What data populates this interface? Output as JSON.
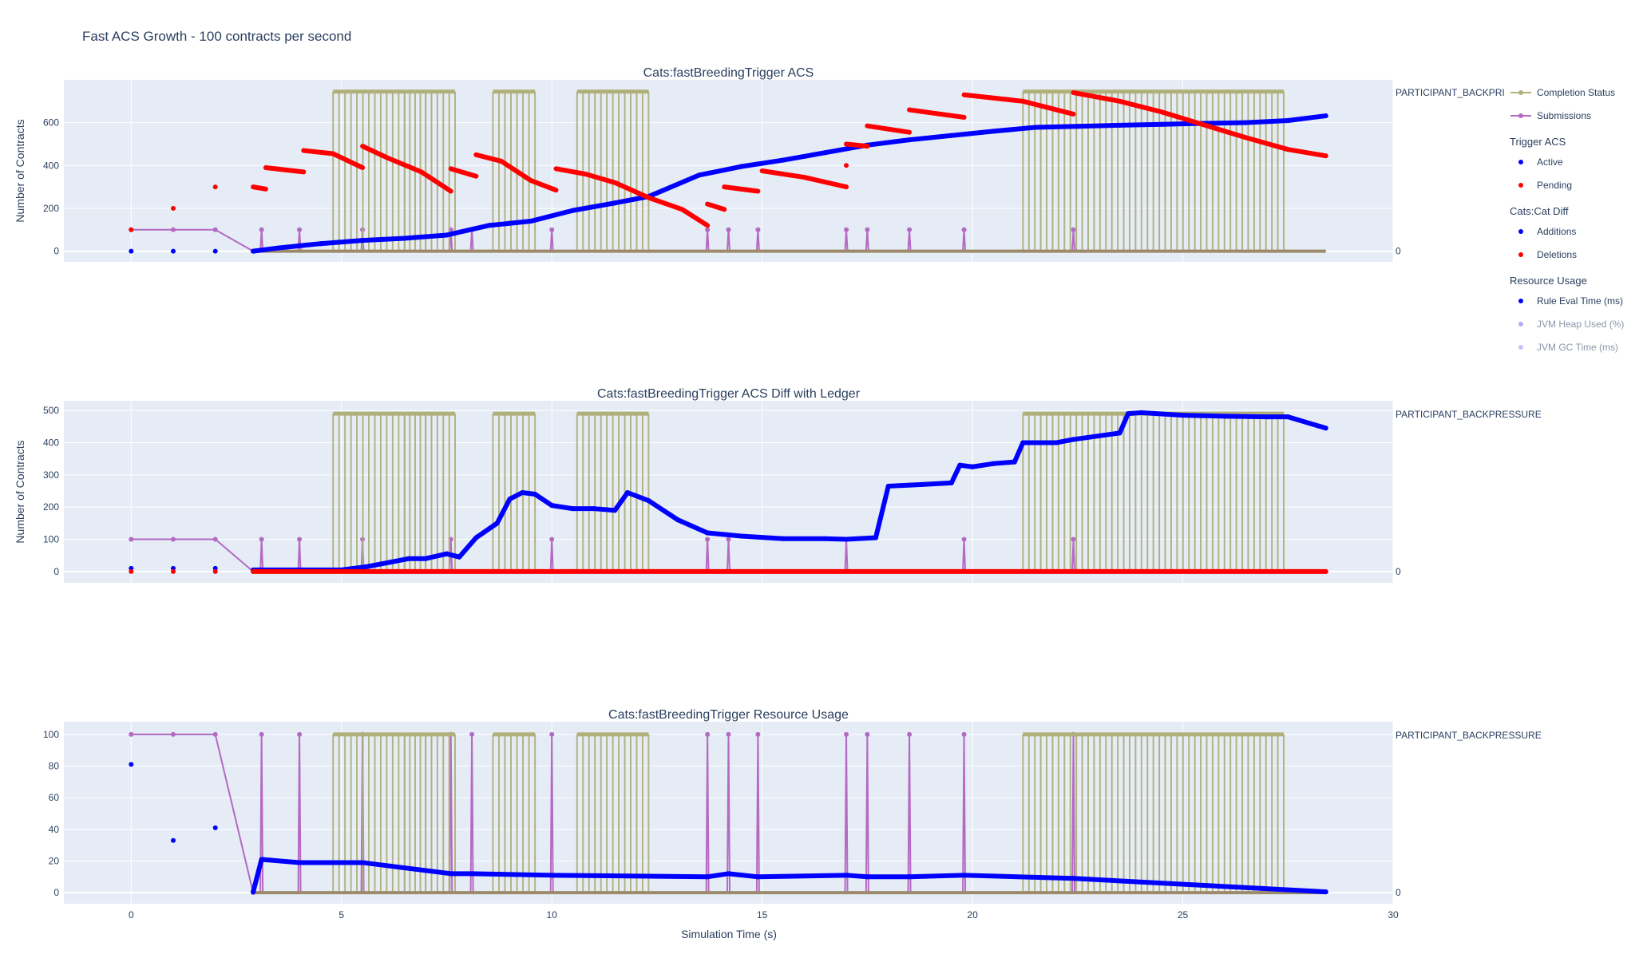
{
  "figure": {
    "title": "Fast ACS Growth - 100 contracts per second",
    "xlabel": "Simulation Time (s)",
    "xlim": [
      -1.6,
      30
    ],
    "xticks": [
      0,
      5,
      10,
      15,
      20,
      25,
      30
    ],
    "colors": {
      "plot_bg": "#e5ecf6",
      "grid": "#ffffff",
      "text": "#2a3f5f",
      "active": "#0000ff",
      "pending": "#ff0000",
      "submissions": "#b469c3",
      "completion": "#b0b07a",
      "heap": "#8a70e6",
      "gc": "#9999ff"
    }
  },
  "legend": {
    "entries": [
      {
        "label": "Completion Status",
        "kind": "line-marker",
        "color": "#b0b07a"
      },
      {
        "label": "Submissions",
        "kind": "line-marker",
        "color": "#b469c3"
      },
      {
        "label": "Trigger ACS",
        "kind": "group"
      },
      {
        "label": "Active",
        "kind": "marker",
        "color": "#0000ff"
      },
      {
        "label": "Pending",
        "kind": "marker",
        "color": "#ff0000"
      },
      {
        "label": "Cats:Cat Diff",
        "kind": "group"
      },
      {
        "label": "Additions",
        "kind": "marker",
        "color": "#0000ff"
      },
      {
        "label": "Deletions",
        "kind": "marker",
        "color": "#ff0000"
      },
      {
        "label": "Resource Usage",
        "kind": "group"
      },
      {
        "label": "Rule Eval Time (ms)",
        "kind": "marker",
        "color": "#0000ff"
      },
      {
        "label": "JVM Heap Used (%)",
        "kind": "marker-dim",
        "color": "#8a70e6"
      },
      {
        "label": "JVM GC Time (ms)",
        "kind": "marker-dim",
        "color": "#9999ff"
      }
    ]
  },
  "chart_data": [
    {
      "type": "scatter",
      "title": "Cats:fastBreedingTrigger ACS",
      "ylabel": "Number of Contracts",
      "ylim": [
        -50,
        800
      ],
      "yticks": [
        0,
        200,
        400,
        600
      ],
      "right_label": "PARTICIPANT_BACKPRI",
      "right_zero": "0",
      "series": [
        {
          "name": "Active",
          "color": "#0000ff",
          "points": [
            [
              0,
              0
            ],
            [
              1,
              0
            ],
            [
              2,
              0
            ],
            [
              2.9,
              0
            ],
            [
              3.5,
              15
            ],
            [
              4.5,
              35
            ],
            [
              5.5,
              50
            ],
            [
              6.5,
              60
            ],
            [
              7.5,
              75
            ],
            [
              8.5,
              120
            ],
            [
              9.5,
              140
            ],
            [
              10.5,
              190
            ],
            [
              11.5,
              225
            ],
            [
              12.3,
              255
            ],
            [
              13.5,
              355
            ],
            [
              14.5,
              395
            ],
            [
              15.5,
              425
            ],
            [
              16.5,
              460
            ],
            [
              17.5,
              495
            ],
            [
              18.5,
              520
            ],
            [
              19.5,
              540
            ],
            [
              20.5,
              560
            ],
            [
              21.5,
              578
            ],
            [
              22.5,
              583
            ],
            [
              23.5,
              588
            ],
            [
              24.5,
              592
            ],
            [
              25.5,
              597
            ],
            [
              26.5,
              600
            ],
            [
              27.5,
              610
            ],
            [
              28.4,
              632
            ]
          ]
        },
        {
          "name": "Pending",
          "color": "#ff0000",
          "segments": [
            [
              [
                0,
                100
              ]
            ],
            [
              [
                1,
                200
              ]
            ],
            [
              [
                2,
                300
              ]
            ],
            [
              [
                2.9,
                300
              ],
              [
                3.2,
                290
              ]
            ],
            [
              [
                3.2,
                390
              ],
              [
                4.1,
                370
              ]
            ],
            [
              [
                4.1,
                470
              ],
              [
                4.8,
                455
              ],
              [
                5.5,
                390
              ]
            ],
            [
              [
                5.5,
                490
              ],
              [
                6.1,
                435
              ],
              [
                6.9,
                370
              ],
              [
                7.6,
                280
              ]
            ],
            [
              [
                7.6,
                385
              ],
              [
                8.2,
                350
              ]
            ],
            [
              [
                8.2,
                450
              ],
              [
                8.8,
                420
              ],
              [
                9.5,
                330
              ],
              [
                10.1,
                285
              ]
            ],
            [
              [
                10.1,
                385
              ],
              [
                10.8,
                360
              ],
              [
                11.5,
                320
              ],
              [
                12.3,
                250
              ],
              [
                13.1,
                195
              ],
              [
                13.7,
                120
              ]
            ],
            [
              [
                13.7,
                220
              ],
              [
                14.1,
                195
              ]
            ],
            [
              [
                14.1,
                300
              ],
              [
                14.9,
                280
              ]
            ],
            [
              [
                15,
                375
              ],
              [
                16,
                345
              ],
              [
                17,
                300
              ]
            ],
            [
              [
                17,
                400
              ]
            ],
            [
              [
                17,
                500
              ],
              [
                17.5,
                490
              ]
            ],
            [
              [
                17.5,
                585
              ],
              [
                18.5,
                555
              ]
            ],
            [
              [
                18.5,
                660
              ],
              [
                19.8,
                625
              ]
            ],
            [
              [
                19.8,
                730
              ],
              [
                21.2,
                700
              ],
              [
                22.4,
                640
              ]
            ],
            [
              [
                22.4,
                740
              ],
              [
                23.5,
                700
              ],
              [
                24.5,
                650
              ],
              [
                25.5,
                590
              ],
              [
                26.5,
                530
              ],
              [
                27.5,
                475
              ],
              [
                28.4,
                445
              ]
            ]
          ]
        },
        {
          "name": "Submissions",
          "color": "#b469c3",
          "baseline": 100,
          "spikes": [
            3.1,
            4.0,
            5.5,
            7.6,
            8.1,
            10.0,
            13.7,
            14.2,
            14.9,
            17.0,
            17.5,
            18.5,
            19.8,
            22.4
          ],
          "spike_value": 100
        },
        {
          "name": "Completion Status",
          "color": "#b0b07a",
          "top": 745,
          "bands": [
            [
              4.8,
              6.5
            ],
            [
              6.5,
              7.0
            ],
            [
              7.0,
              7.7
            ],
            [
              8.6,
              9.6
            ],
            [
              10.6,
              12.3
            ],
            [
              21.2,
              27.4
            ]
          ]
        }
      ]
    },
    {
      "type": "scatter",
      "title": "Cats:fastBreedingTrigger ACS Diff with Ledger",
      "ylabel": "Number of Contracts",
      "ylim": [
        -35,
        530
      ],
      "yticks": [
        0,
        100,
        200,
        300,
        400,
        500
      ],
      "right_label": "PARTICIPANT_BACKPRESSURE",
      "right_zero": "0",
      "series": [
        {
          "name": "Additions",
          "color": "#0000ff",
          "points": [
            [
              0,
              10
            ],
            [
              1,
              10
            ],
            [
              2,
              10
            ],
            [
              2.9,
              5
            ],
            [
              5,
              5
            ],
            [
              5.6,
              15
            ],
            [
              6.2,
              30
            ],
            [
              6.6,
              40
            ],
            [
              7,
              40
            ],
            [
              7.5,
              55
            ],
            [
              7.8,
              45
            ],
            [
              8.2,
              105
            ],
            [
              8.7,
              150
            ],
            [
              9,
              225
            ],
            [
              9.3,
              245
            ],
            [
              9.6,
              240
            ],
            [
              10,
              205
            ],
            [
              10.5,
              195
            ],
            [
              11,
              195
            ],
            [
              11.5,
              190
            ],
            [
              11.8,
              245
            ],
            [
              12.3,
              220
            ],
            [
              13,
              160
            ],
            [
              13.7,
              120
            ],
            [
              14.5,
              110
            ],
            [
              15.5,
              102
            ],
            [
              16.5,
              102
            ],
            [
              17,
              100
            ],
            [
              17.7,
              105
            ],
            [
              18,
              265
            ],
            [
              18.8,
              270
            ],
            [
              19.5,
              275
            ],
            [
              19.7,
              330
            ],
            [
              20,
              325
            ],
            [
              20.5,
              335
            ],
            [
              21,
              340
            ],
            [
              21.2,
              400
            ],
            [
              22,
              400
            ],
            [
              22.4,
              410
            ],
            [
              23.5,
              430
            ],
            [
              23.7,
              490
            ],
            [
              24,
              493
            ],
            [
              25,
              485
            ],
            [
              26,
              482
            ],
            [
              27,
              480
            ],
            [
              27.5,
              480
            ],
            [
              28.4,
              445
            ]
          ]
        },
        {
          "name": "Deletions",
          "color": "#ff0000",
          "points": [
            [
              0,
              0
            ],
            [
              1,
              0
            ],
            [
              2,
              0
            ],
            [
              2.9,
              0
            ],
            [
              28.4,
              0
            ]
          ]
        },
        {
          "name": "Submissions",
          "color": "#b469c3",
          "baseline": 100,
          "spikes": [
            3.1,
            4.0,
            5.5,
            7.6,
            10.0,
            13.7,
            14.2,
            17.0,
            19.8,
            22.4
          ],
          "spike_value": 100
        },
        {
          "name": "Completion Status",
          "color": "#b0b07a",
          "top": 490,
          "bands": [
            [
              4.8,
              6.5
            ],
            [
              6.5,
              7.0
            ],
            [
              7.0,
              7.7
            ],
            [
              8.6,
              9.6
            ],
            [
              10.6,
              12.3
            ],
            [
              21.2,
              27.4
            ]
          ]
        }
      ]
    },
    {
      "type": "scatter",
      "title": "Cats:fastBreedingTrigger Resource Usage",
      "ylabel": "",
      "ylim": [
        -7,
        108
      ],
      "yticks": [
        0,
        20,
        40,
        60,
        80,
        100
      ],
      "right_label": "PARTICIPANT_BACKPRESSURE",
      "right_zero": "0",
      "series": [
        {
          "name": "Rule Eval Time (ms)",
          "color": "#0000ff",
          "points": [
            [
              0,
              81
            ],
            [
              1,
              33
            ],
            [
              2,
              41
            ],
            [
              2.9,
              0.5
            ],
            [
              3.1,
              21
            ],
            [
              4.0,
              19
            ],
            [
              5.5,
              19
            ],
            [
              7.6,
              12
            ],
            [
              8.1,
              12
            ],
            [
              10,
              11
            ],
            [
              13.7,
              10
            ],
            [
              14.2,
              12
            ],
            [
              14.9,
              10
            ],
            [
              17,
              11
            ],
            [
              17.5,
              10
            ],
            [
              18.5,
              10
            ],
            [
              19.8,
              11
            ],
            [
              22.4,
              9
            ],
            [
              28.4,
              0.5
            ]
          ]
        },
        {
          "name": "Submissions",
          "color": "#b469c3",
          "baseline": 100,
          "spikes": [
            3.1,
            4.0,
            5.5,
            7.6,
            8.1,
            10.0,
            13.7,
            14.2,
            14.9,
            17.0,
            17.5,
            18.5,
            19.8,
            22.4
          ],
          "spike_value": 100
        },
        {
          "name": "Completion Status",
          "color": "#b0b07a",
          "top": 100,
          "bands": [
            [
              4.8,
              6.5
            ],
            [
              6.5,
              7.0
            ],
            [
              7.0,
              7.7
            ],
            [
              8.6,
              9.6
            ],
            [
              10.6,
              12.3
            ],
            [
              21.2,
              27.4
            ]
          ]
        }
      ]
    }
  ]
}
